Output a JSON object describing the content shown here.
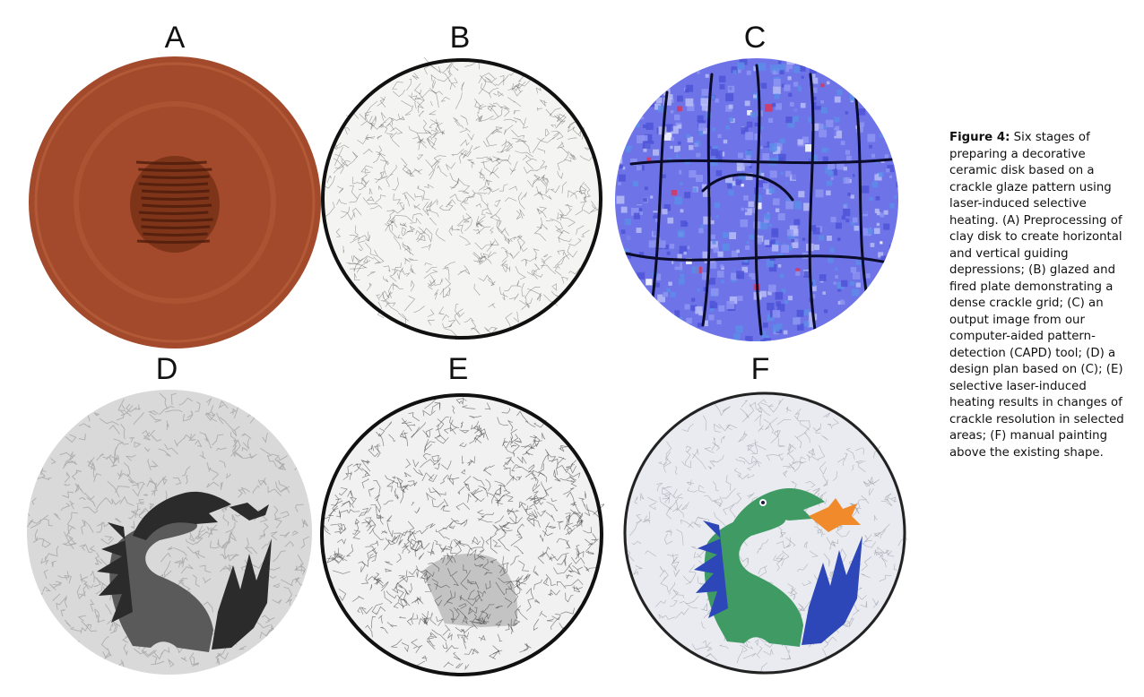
{
  "figure": {
    "panels": [
      {
        "label": "A",
        "colors": {
          "base": "#a24a2b",
          "edge": "#7e3419",
          "light": "#bd6540"
        }
      },
      {
        "label": "B",
        "colors": {
          "base": "#f4f4f2",
          "edge": "#111111",
          "crack": "#555555"
        }
      },
      {
        "label": "C",
        "colors": {
          "base": "#6e74e8",
          "crack": "#0b0b2a",
          "accent": "#d8375a"
        }
      },
      {
        "label": "D",
        "colors": {
          "base": "#d9d9d9",
          "edge": "#a8a8a8",
          "dark": "#2b2b2b",
          "mid": "#5a5a5a"
        }
      },
      {
        "label": "E",
        "colors": {
          "base": "#f1f1f1",
          "edge": "#111111",
          "crack": "#3a3a3a"
        }
      },
      {
        "label": "F",
        "colors": {
          "base": "#e9ebf0",
          "edge": "#222222",
          "green": "#3f9a63",
          "blue": "#2d46b8",
          "orange": "#f08a2a"
        }
      }
    ],
    "caption_label": "Figure 4:",
    "caption_text": "Six stages of preparing a decorative ceramic disk based on a crackle glaze pattern using laser-induced selective heating. (A) Preprocessing of clay disk to create horizontal and vertical guiding depressions; (B) glazed and fired plate demonstrating a dense crackle grid; (C) an output image from our computer-aided pattern-detection (CAPD) tool; (D) a design plan based on (C); (E) selective laser-induced heating results in changes of crackle resolution in selected areas; (F) manual painting above the existing shape."
  }
}
